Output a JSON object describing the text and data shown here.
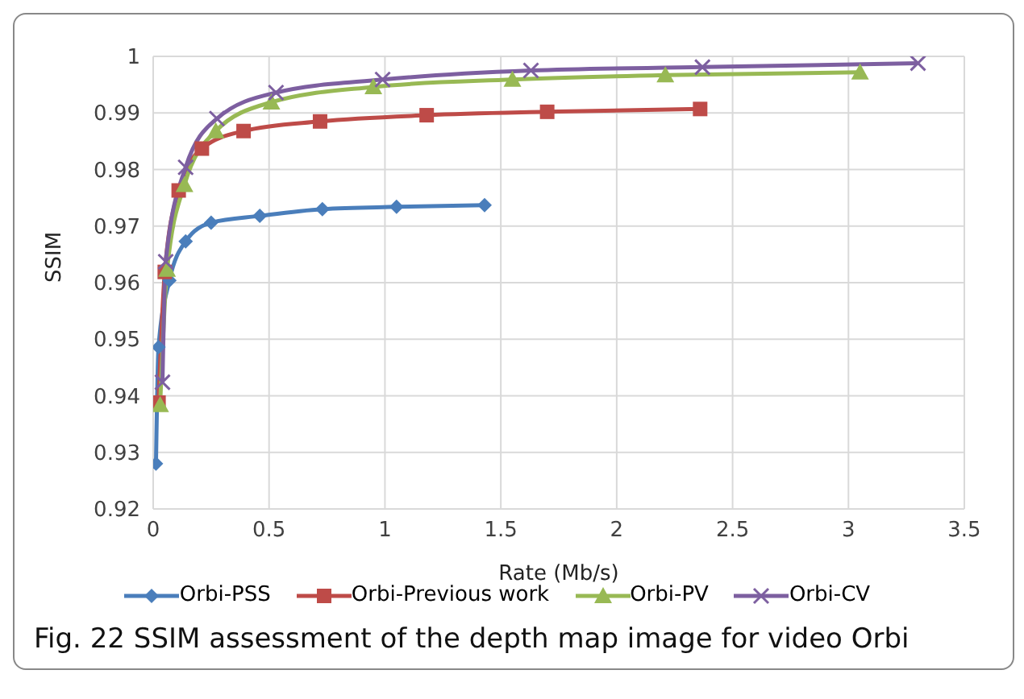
{
  "chart_data": {
    "type": "line",
    "xlabel": "Rate (Mb/s)",
    "ylabel": "SSIM",
    "annotations": [
      "Fig. 22 SSIM assessment of the depth map image for video Orbi"
    ],
    "xlim": [
      0,
      3.5
    ],
    "xticks": [
      0,
      0.5,
      1,
      1.5,
      2,
      2.5,
      3,
      3.5
    ],
    "ylim": [
      0.92,
      1
    ],
    "yticks": [
      0.92,
      0.93,
      0.94,
      0.95,
      0.96,
      0.97,
      0.98,
      0.99,
      1
    ],
    "grid": true,
    "legend": "bottom",
    "series": [
      {
        "name": "Orbi-PSS",
        "color": "#4a7ebb",
        "marker": "diamond",
        "x": [
          0.012,
          0.023,
          0.07,
          0.14,
          0.25,
          0.46,
          0.73,
          1.05,
          1.43
        ],
        "values": [
          0.928,
          0.9486,
          0.9604,
          0.9673,
          0.9706,
          0.9718,
          0.973,
          0.9734,
          0.9737
        ]
      },
      {
        "name": "Orbi-Previous work",
        "color": "#be4b48",
        "marker": "square",
        "x": [
          0.023,
          0.05,
          0.11,
          0.21,
          0.39,
          0.72,
          1.18,
          1.7,
          2.36
        ],
        "values": [
          0.9388,
          0.9619,
          0.9763,
          0.9837,
          0.9868,
          0.9885,
          0.9896,
          0.9902,
          0.9907
        ]
      },
      {
        "name": "Orbi-PV",
        "color": "#98b954",
        "marker": "triangle",
        "x": [
          0.03,
          0.06,
          0.135,
          0.27,
          0.51,
          0.95,
          1.55,
          2.21,
          3.05
        ],
        "values": [
          0.9384,
          0.9623,
          0.9773,
          0.9868,
          0.9919,
          0.9946,
          0.9959,
          0.9967,
          0.9972
        ]
      },
      {
        "name": "Orbi-CV",
        "color": "#7d5fa0",
        "marker": "cross",
        "x": [
          0.04,
          0.054,
          0.14,
          0.275,
          0.53,
          0.99,
          1.63,
          2.37,
          3.3
        ],
        "values": [
          0.9424,
          0.9637,
          0.9804,
          0.989,
          0.9936,
          0.9959,
          0.9975,
          0.9981,
          0.9988
        ]
      }
    ]
  }
}
